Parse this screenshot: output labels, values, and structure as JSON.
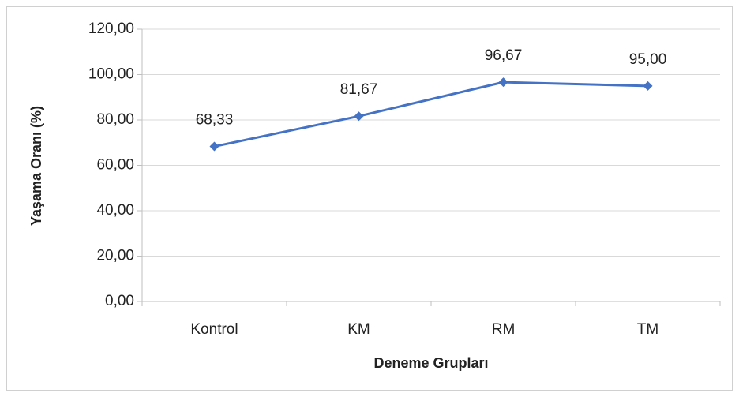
{
  "chart_data": {
    "type": "line",
    "categories": [
      "Kontrol",
      "KM",
      "RM",
      "TM"
    ],
    "series": [
      {
        "color": "#4472c4",
        "values": [
          68.33,
          81.67,
          96.67,
          95
        ],
        "value_labels": [
          "68,33",
          "81,67",
          "96,67",
          "95,00"
        ]
      }
    ],
    "xlabel": "Deneme Grupları",
    "ylabel": "Yaşama Oranı (%)",
    "ylim": [
      0,
      120
    ],
    "yticks": [
      {
        "value": 0,
        "label": "0,00"
      },
      {
        "value": 20,
        "label": "20,00"
      },
      {
        "value": 40,
        "label": "40,00"
      },
      {
        "value": 60,
        "label": "60,00"
      },
      {
        "value": 80,
        "label": "80,00"
      },
      {
        "value": 100,
        "label": "100,00"
      },
      {
        "value": 120,
        "label": "120,00"
      }
    ],
    "grid": true
  }
}
